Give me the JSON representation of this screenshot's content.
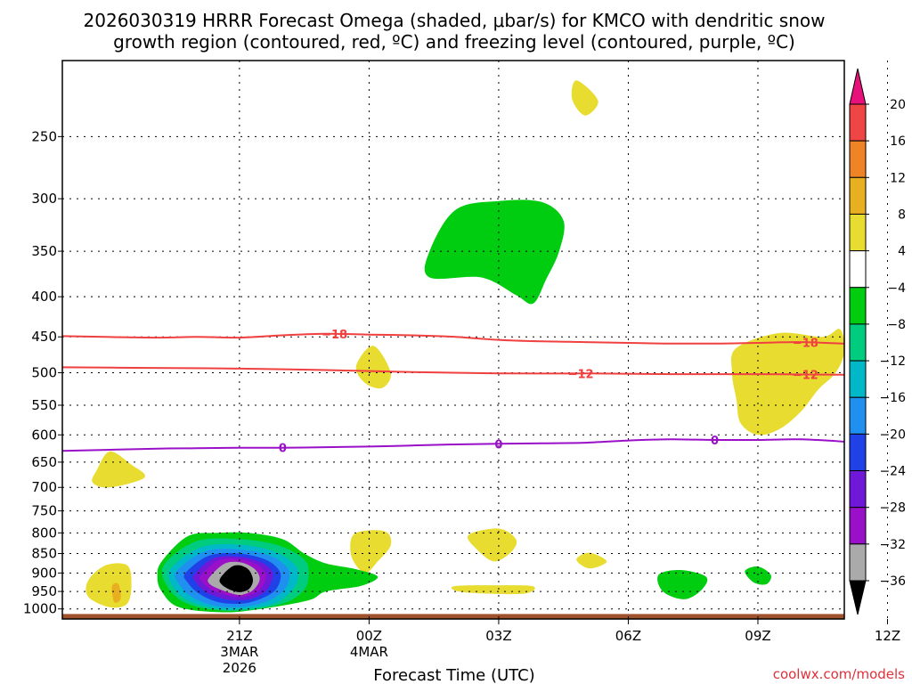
{
  "chart_data": {
    "type": "contour",
    "title_line1": "2026030319 HRRR Forecast Omega (shaded, μbar/s) for KMCO with dendritic snow",
    "title_line2": "growth region (contoured, red, ºC) and freezing level (contoured, purple, ºC)",
    "xlabel": "Forecast Time (UTC)",
    "credit": "coolwx.com/models",
    "x_unit": "hours since 2026-03-03 19Z",
    "x_range": [
      -2.1,
      16
    ],
    "x_ticks": [
      {
        "h": 2,
        "lines": [
          "21Z",
          "3MAR",
          "2026"
        ]
      },
      {
        "h": 5,
        "lines": [
          "00Z",
          "4MAR"
        ]
      },
      {
        "h": 8,
        "lines": [
          "03Z"
        ]
      },
      {
        "h": 11,
        "lines": [
          "06Z"
        ]
      },
      {
        "h": 14,
        "lines": [
          "09Z"
        ]
      },
      {
        "h": 17,
        "lines": [
          "12Z"
        ]
      }
    ],
    "y_scale": "log-pressure",
    "y_range_hpa": [
      200,
      1030
    ],
    "y_ticks": [
      250,
      300,
      350,
      400,
      450,
      500,
      550,
      600,
      650,
      700,
      750,
      800,
      850,
      900,
      950,
      1000
    ],
    "surface_hpa": 1015,
    "colors": {
      "dendritic": "#f04040",
      "freezing": "#9a10c8",
      "surface": "#a0522d",
      "grid": "#000000"
    },
    "colorbar": {
      "levels": [
        "20",
        "16",
        "12",
        "8",
        "4",
        "−4",
        "−8",
        "−12",
        "−16",
        "−20",
        "−24",
        "−28",
        "−32",
        "−36"
      ],
      "colors": [
        "#e8107a",
        "#f04545",
        "#ee8426",
        "#e8b020",
        "#e8dc30",
        "#ffffff",
        "#00cc10",
        "#00cc80",
        "#00b8c8",
        "#2090f0",
        "#2040e8",
        "#7018d8",
        "#9a10c8",
        "#aaaaaa",
        "#000000"
      ]
    },
    "contours": {
      "dendritic_minus18": {
        "label": "−18",
        "points": [
          [
            -2.1,
            449
          ],
          [
            0,
            451
          ],
          [
            1,
            450
          ],
          [
            2,
            451
          ],
          [
            3,
            448
          ],
          [
            4,
            446
          ],
          [
            5,
            447
          ],
          [
            6,
            448
          ],
          [
            7,
            450
          ],
          [
            8,
            454
          ],
          [
            9,
            456
          ],
          [
            10,
            457
          ],
          [
            11,
            458
          ],
          [
            12,
            459
          ],
          [
            13,
            459
          ],
          [
            14,
            458
          ],
          [
            15,
            457
          ],
          [
            16,
            459
          ]
        ]
      },
      "dendritic_minus12": {
        "label": "−12",
        "points": [
          [
            -2.1,
            492
          ],
          [
            0,
            493
          ],
          [
            2,
            494
          ],
          [
            4,
            496
          ],
          [
            6,
            499
          ],
          [
            8,
            501
          ],
          [
            10,
            501
          ],
          [
            12,
            502
          ],
          [
            14,
            502
          ],
          [
            16,
            503
          ]
        ]
      },
      "freezing_0": {
        "label": "0",
        "points": [
          [
            -2.1,
            629
          ],
          [
            0,
            625
          ],
          [
            1,
            624
          ],
          [
            2,
            623
          ],
          [
            3,
            623
          ],
          [
            4,
            622
          ],
          [
            5,
            621
          ],
          [
            6,
            619
          ],
          [
            7,
            617
          ],
          [
            8,
            616
          ],
          [
            9,
            615
          ],
          [
            10,
            614
          ],
          [
            11,
            610
          ],
          [
            12,
            608
          ],
          [
            13,
            609
          ],
          [
            14,
            609
          ],
          [
            15,
            608
          ],
          [
            16,
            612
          ]
        ]
      }
    },
    "omega_features": [
      {
        "level": 4,
        "points": [
          [
            13.5,
            465
          ],
          [
            14.5,
            445
          ],
          [
            15.5,
            450
          ],
          [
            15.9,
            440
          ],
          [
            16,
            470
          ],
          [
            15.8,
            500
          ],
          [
            15.4,
            525
          ],
          [
            15,
            560
          ],
          [
            14.5,
            590
          ],
          [
            14,
            600
          ],
          [
            13.6,
            580
          ],
          [
            13.5,
            540
          ],
          [
            13.4,
            500
          ]
        ]
      },
      {
        "level": -4,
        "points": [
          [
            6.4,
            350
          ],
          [
            7,
            310
          ],
          [
            8,
            302
          ],
          [
            9,
            303
          ],
          [
            9.5,
            320
          ],
          [
            9.4,
            350
          ],
          [
            9.1,
            380
          ],
          [
            8.8,
            408
          ],
          [
            8.4,
            398
          ],
          [
            7.6,
            378
          ],
          [
            6.4,
            378
          ]
        ]
      },
      {
        "level": 4,
        "points": [
          [
            9.8,
            212
          ],
          [
            10.3,
            225
          ],
          [
            10,
            235
          ],
          [
            9.7,
            224
          ]
        ]
      },
      {
        "level": 4,
        "points": [
          [
            4.7,
            490
          ],
          [
            5.1,
            462
          ],
          [
            5.5,
            500
          ],
          [
            5.3,
            523
          ],
          [
            4.9,
            515
          ]
        ]
      },
      {
        "level": 4,
        "points": [
          [
            -1.3,
            665
          ],
          [
            -1,
            630
          ],
          [
            -0.5,
            655
          ],
          [
            -0.2,
            680
          ],
          [
            -1,
            700
          ],
          [
            -1.4,
            690
          ]
        ]
      },
      {
        "level": 4,
        "points": [
          [
            4.6,
            810
          ],
          [
            4.9,
            795
          ],
          [
            5.4,
            798
          ],
          [
            5.5,
            830
          ],
          [
            5.2,
            870
          ],
          [
            4.9,
            900
          ],
          [
            4.6,
            860
          ]
        ]
      },
      {
        "level": 4,
        "points": [
          [
            7.3,
            805
          ],
          [
            8,
            790
          ],
          [
            8.4,
            815
          ],
          [
            8.3,
            845
          ],
          [
            7.9,
            870
          ],
          [
            7.5,
            840
          ]
        ]
      },
      {
        "level": 4,
        "points": [
          [
            9.8,
            865
          ],
          [
            10.1,
            848
          ],
          [
            10.5,
            870
          ],
          [
            10.1,
            888
          ]
        ]
      },
      {
        "level": 4,
        "points": [
          [
            7,
            935
          ],
          [
            8,
            933
          ],
          [
            8.8,
            936
          ],
          [
            8.6,
            956
          ],
          [
            7.5,
            955
          ],
          [
            7,
            948
          ]
        ]
      },
      {
        "level": 4,
        "points": [
          [
            -1.5,
            920
          ],
          [
            -1.1,
            880
          ],
          [
            -0.6,
            880
          ],
          [
            -0.5,
            930
          ],
          [
            -0.6,
            985
          ],
          [
            -1,
            995
          ],
          [
            -1.5,
            965
          ]
        ]
      },
      {
        "level": 8,
        "points": [
          [
            -0.95,
            935
          ],
          [
            -0.8,
            930
          ],
          [
            -0.75,
            970
          ],
          [
            -0.9,
            980
          ]
        ]
      },
      {
        "level": -4,
        "points": [
          [
            11.7,
            905
          ],
          [
            12.2,
            892
          ],
          [
            12.8,
            910
          ],
          [
            12.7,
            945
          ],
          [
            12.3,
            972
          ],
          [
            11.8,
            950
          ]
        ]
      },
      {
        "level": -4,
        "points": [
          [
            13.7,
            895
          ],
          [
            14,
            883
          ],
          [
            14.3,
            905
          ],
          [
            14.2,
            930
          ],
          [
            13.9,
            925
          ]
        ]
      },
      {
        "level": -4,
        "points": [
          [
            0.2,
            870
          ],
          [
            0.8,
            808
          ],
          [
            1.5,
            800
          ],
          [
            2.2,
            800
          ],
          [
            3,
            815
          ],
          [
            3.5,
            850
          ],
          [
            4,
            875
          ],
          [
            4.7,
            890
          ],
          [
            5.2,
            910
          ],
          [
            4.8,
            935
          ],
          [
            4,
            950
          ],
          [
            3.6,
            975
          ],
          [
            2.5,
            1000
          ],
          [
            1.6,
            1010
          ],
          [
            0.6,
            995
          ],
          [
            0.2,
            950
          ],
          [
            0.1,
            910
          ]
        ]
      },
      {
        "level": -8,
        "points": [
          [
            0.25,
            880
          ],
          [
            1,
            820
          ],
          [
            2,
            815
          ],
          [
            2.9,
            830
          ],
          [
            3.5,
            865
          ],
          [
            3.6,
            905
          ],
          [
            3.5,
            945
          ],
          [
            3.1,
            980
          ],
          [
            2.4,
            1000
          ],
          [
            1.6,
            1005
          ],
          [
            0.8,
            985
          ],
          [
            0.35,
            940
          ]
        ]
      },
      {
        "level": -12,
        "points": [
          [
            0.4,
            890
          ],
          [
            1.1,
            835
          ],
          [
            2,
            828
          ],
          [
            2.8,
            845
          ],
          [
            3.3,
            880
          ],
          [
            3.35,
            915
          ],
          [
            3.2,
            950
          ],
          [
            2.8,
            985
          ],
          [
            2.1,
            1000
          ],
          [
            1.5,
            1000
          ],
          [
            0.8,
            975
          ],
          [
            0.45,
            935
          ]
        ]
      },
      {
        "level": -16,
        "points": [
          [
            0.55,
            895
          ],
          [
            1.2,
            845
          ],
          [
            2,
            840
          ],
          [
            2.7,
            855
          ],
          [
            3.1,
            885
          ],
          [
            3.15,
            915
          ],
          [
            3,
            950
          ],
          [
            2.6,
            980
          ],
          [
            2,
            995
          ],
          [
            1.4,
            990
          ],
          [
            0.9,
            965
          ],
          [
            0.6,
            930
          ]
        ]
      },
      {
        "level": -20,
        "points": [
          [
            0.75,
            900
          ],
          [
            1.3,
            855
          ],
          [
            2,
            850
          ],
          [
            2.6,
            865
          ],
          [
            2.9,
            890
          ],
          [
            2.95,
            915
          ],
          [
            2.8,
            950
          ],
          [
            2.4,
            975
          ],
          [
            2,
            985
          ],
          [
            1.5,
            980
          ],
          [
            1.05,
            955
          ],
          [
            0.8,
            925
          ]
        ]
      },
      {
        "level": -24,
        "points": [
          [
            0.95,
            905
          ],
          [
            1.4,
            862
          ],
          [
            2,
            858
          ],
          [
            2.5,
            872
          ],
          [
            2.75,
            895
          ],
          [
            2.75,
            918
          ],
          [
            2.6,
            950
          ],
          [
            2.3,
            970
          ],
          [
            2,
            975
          ],
          [
            1.6,
            970
          ],
          [
            1.2,
            950
          ],
          [
            1,
            925
          ]
        ]
      },
      {
        "level": -28,
        "points": [
          [
            1.1,
            908
          ],
          [
            1.5,
            868
          ],
          [
            2,
            864
          ],
          [
            2.4,
            878
          ],
          [
            2.6,
            900
          ],
          [
            2.6,
            920
          ],
          [
            2.45,
            948
          ],
          [
            2.2,
            962
          ],
          [
            2,
            966
          ],
          [
            1.7,
            960
          ],
          [
            1.35,
            945
          ],
          [
            1.15,
            925
          ]
        ]
      },
      {
        "level": -32,
        "points": [
          [
            1.3,
            912
          ],
          [
            1.65,
            876
          ],
          [
            2,
            872
          ],
          [
            2.3,
            885
          ],
          [
            2.45,
            905
          ],
          [
            2.45,
            925
          ],
          [
            2.3,
            948
          ],
          [
            2.1,
            958
          ],
          [
            2,
            960
          ],
          [
            1.8,
            955
          ],
          [
            1.5,
            942
          ],
          [
            1.3,
            928
          ]
        ]
      },
      {
        "level": -36,
        "points": [
          [
            1.55,
            915
          ],
          [
            1.8,
            885
          ],
          [
            2,
            880
          ],
          [
            2.2,
            890
          ],
          [
            2.3,
            910
          ],
          [
            2.3,
            928
          ],
          [
            2.2,
            945
          ],
          [
            2,
            952
          ],
          [
            1.8,
            946
          ],
          [
            1.6,
            932
          ]
        ]
      }
    ]
  }
}
